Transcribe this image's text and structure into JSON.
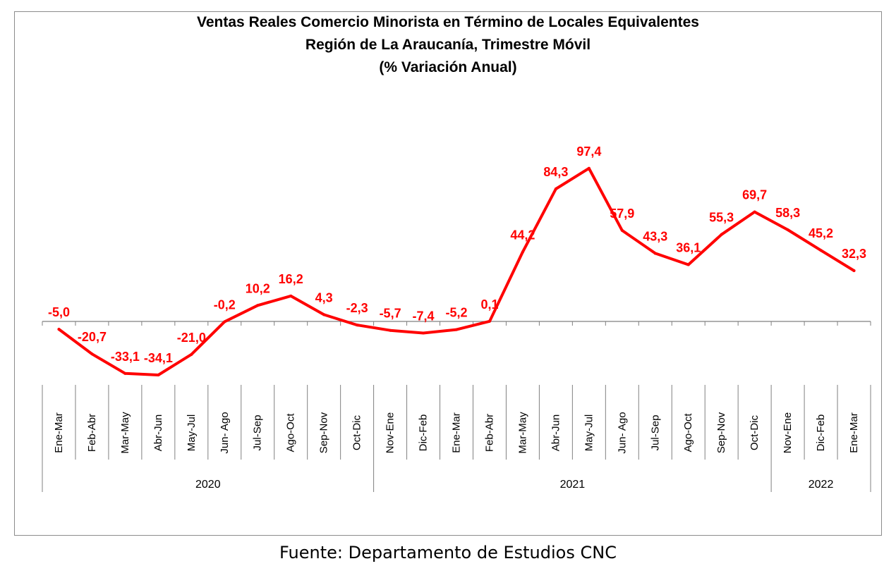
{
  "chart_data": {
    "type": "line",
    "title": "Ventas Reales Comercio Minorista  en Término de Locales Equivalentes",
    "subtitle_line2": "Región de La Araucanía, Trimestre Móvil",
    "subtitle_line3": "(% Variación Anual)",
    "categories": [
      "Ene-Mar",
      "Feb-Abr",
      "Mar-May",
      "Abr-Jun",
      "May-Jul",
      "Jun- Ago",
      "Jul-Sep",
      "Ago-Oct",
      "Sep-Nov",
      "Oct-Dic",
      "Nov-Ene",
      "Dic-Feb",
      "Ene-Mar",
      "Feb-Abr",
      "Mar-May",
      "Abr-Jun",
      "May-Jul",
      "Jun- Ago",
      "Jul-Sep",
      "Ago-Oct",
      "Sep-Nov",
      "Oct-Dic",
      "Nov-Ene",
      "Dic-Feb",
      "Ene-Mar"
    ],
    "values": [
      -5.0,
      -20.7,
      -33.1,
      -34.1,
      -21.0,
      -0.2,
      10.2,
      16.2,
      4.3,
      -2.3,
      -5.7,
      -7.4,
      -5.2,
      0.1,
      44.2,
      84.3,
      97.4,
      57.9,
      43.3,
      36.1,
      55.3,
      69.7,
      58.3,
      45.2,
      32.3
    ],
    "value_labels": [
      "-5,0",
      "-20,7",
      "-33,1",
      "-34,1",
      "-21,0",
      "-0,2",
      "10,2",
      "16,2",
      "4,3",
      "-2,3",
      "-5,7",
      "-7,4",
      "-5,2",
      "0,1",
      "44,2",
      "84,3",
      "97,4",
      "57,9",
      "43,3",
      "36,1",
      "55,3",
      "69,7",
      "58,3",
      "45,2",
      "32,3"
    ],
    "year_groups": [
      {
        "label": "2020",
        "start": 0,
        "end": 9
      },
      {
        "label": "2021",
        "start": 10,
        "end": 21
      },
      {
        "label": "2022",
        "start": 22,
        "end": 24
      }
    ],
    "line_color": "#ff0000",
    "label_color": "#ff0000",
    "ylim": [
      -40,
      100
    ],
    "grid": false,
    "legend": "none"
  },
  "source_text": "Fuente: Departamento de Estudios CNC"
}
